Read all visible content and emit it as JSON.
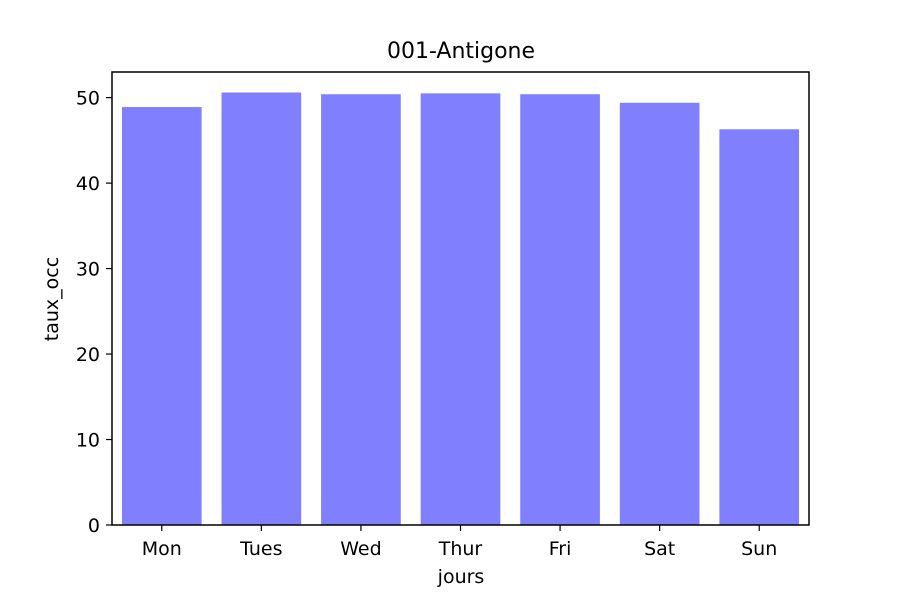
{
  "chart_data": {
    "type": "bar",
    "title": "001-Antigone",
    "xlabel": "jours",
    "ylabel": "taux_occ",
    "categories": [
      "Mon",
      "Tues",
      "Wed",
      "Thur",
      "Fri",
      "Sat",
      "Sun"
    ],
    "values": [
      48.9,
      50.6,
      50.4,
      50.5,
      50.4,
      49.4,
      46.3
    ],
    "ylim": [
      0,
      53
    ],
    "yticks": [
      0,
      10,
      20,
      30,
      40,
      50
    ],
    "bar_color": "#8080ff",
    "grid": false,
    "legend": "none"
  }
}
